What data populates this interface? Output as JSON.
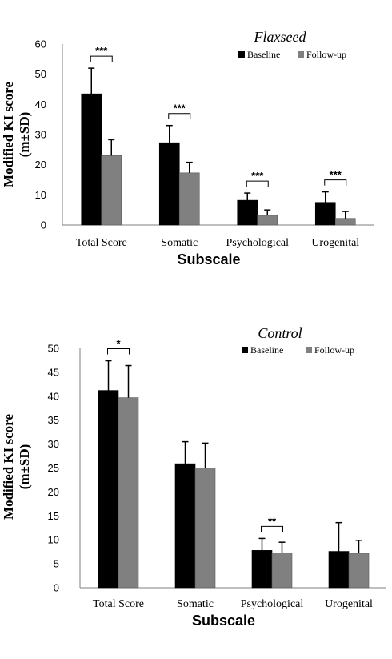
{
  "chart_data": [
    {
      "type": "bar",
      "title": "Flaxseed",
      "xlabel": "Subscale",
      "ylabel": "Modified KI score (m±SD)",
      "ylim": [
        0,
        60
      ],
      "yticks": [
        "0",
        "10",
        "20",
        "30",
        "40",
        "50",
        "60"
      ],
      "categories": [
        "Total Score",
        "Somatic",
        "Psychological",
        "Urogenital"
      ],
      "series": [
        {
          "name": "Baseline",
          "color": "#000000",
          "values": [
            43.5,
            27.3,
            8.2,
            7.5
          ],
          "errors": [
            8.5,
            5.7,
            2.4,
            3.5
          ]
        },
        {
          "name": "Follow-up",
          "color": "#808080",
          "values": [
            23.0,
            17.3,
            3.2,
            2.2
          ],
          "errors": [
            5.3,
            3.5,
            1.8,
            2.3
          ]
        }
      ],
      "significance": [
        "***",
        "***",
        "***",
        "***"
      ],
      "grid": false,
      "legend": "top-right"
    },
    {
      "type": "bar",
      "title": "Control",
      "xlabel": "Subscale",
      "ylabel": "Modified KI score (m±SD)",
      "ylim": [
        0,
        50
      ],
      "yticks": [
        "0",
        "5",
        "10",
        "15",
        "20",
        "25",
        "30",
        "35",
        "40",
        "45",
        "50"
      ],
      "categories": [
        "Total Score",
        "Somatic",
        "Psychological",
        "Urogenital"
      ],
      "series": [
        {
          "name": "Baseline",
          "color": "#000000",
          "values": [
            41.2,
            25.9,
            7.8,
            7.6
          ],
          "errors": [
            6.2,
            4.6,
            2.5,
            6.0
          ]
        },
        {
          "name": "Follow-up",
          "color": "#808080",
          "values": [
            39.7,
            25.0,
            7.3,
            7.2
          ],
          "errors": [
            6.7,
            5.2,
            2.2,
            2.7
          ]
        }
      ],
      "significance": [
        "*",
        "",
        "**",
        ""
      ],
      "grid": false,
      "legend": "top-right"
    }
  ]
}
